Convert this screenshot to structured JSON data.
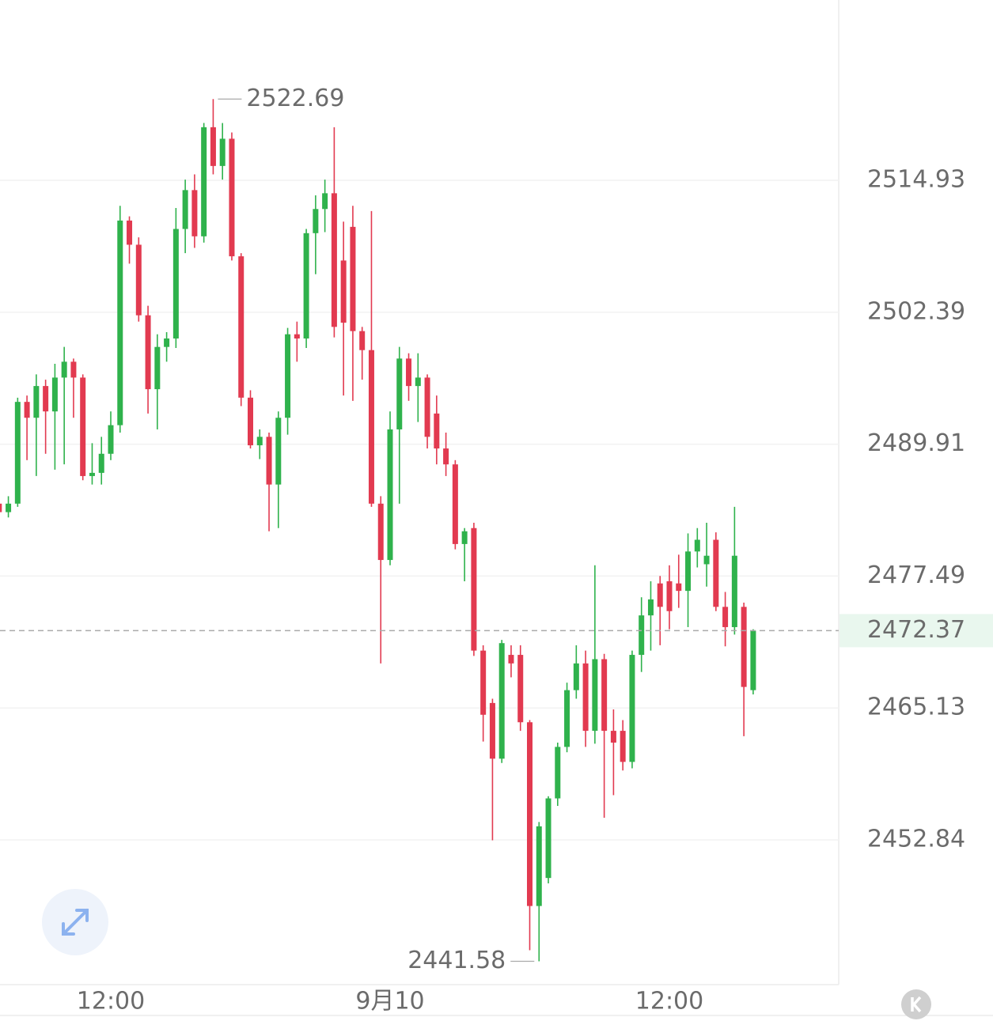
{
  "chart_data": {
    "type": "candlestick",
    "categories": [
      null,
      null,
      null,
      null,
      null,
      null,
      null,
      null,
      null,
      null,
      null,
      null,
      "12:00",
      null,
      null,
      null,
      null,
      null,
      null,
      null,
      null,
      null,
      null,
      null,
      null,
      null,
      null,
      null,
      null,
      null,
      null,
      null,
      null,
      null,
      null,
      null,
      null,
      null,
      null,
      null,
      null,
      null,
      "9月10",
      null,
      null,
      null,
      null,
      null,
      null,
      null,
      null,
      null,
      null,
      null,
      null,
      null,
      null,
      null,
      null,
      null,
      null,
      null,
      null,
      null,
      null,
      null,
      null,
      null,
      null,
      null,
      null,
      null,
      "12:00",
      null,
      null,
      null,
      null,
      null,
      null,
      null,
      null,
      null
    ],
    "open": [
      2484.3,
      2483.5,
      2484.3,
      2493.9,
      2492.4,
      2495.4,
      2493.0,
      2496.2,
      2497.7,
      2496.2,
      2486.9,
      2487.2,
      2489.0,
      2491.7,
      2511.1,
      2508.8,
      2502.1,
      2495.1,
      2499.1,
      2499.9,
      2510.3,
      2514.0,
      2509.6,
      2520.0,
      2516.3,
      2518.9,
      2507.7,
      2494.3,
      2489.8,
      2490.6,
      2486.1,
      2492.4,
      2500.3,
      2499.9,
      2509.9,
      2512.2,
      2513.7,
      2507.3,
      2510.5,
      2500.6,
      2498.8,
      2484.3,
      2479.0,
      2491.3,
      2498.0,
      2495.4,
      2496.2,
      2492.8,
      2489.5,
      2488.0,
      2480.5,
      2482.0,
      2470.5,
      2465.6,
      2460.4,
      2470.1,
      2470.1,
      2463.8,
      2446.7,
      2449.3,
      2456.7,
      2461.5,
      2466.8,
      2469.3,
      2463.0,
      2469.7,
      2463.0,
      2463.0,
      2460.1,
      2470.1,
      2473.8,
      2476.8,
      2477.0,
      2476.8,
      2476.1,
      2479.8,
      2478.6,
      2480.9,
      2474.6,
      2472.7,
      2474.6,
      2466.8
    ],
    "high": [
      2485.0,
      2485.0,
      2494.3,
      2494.5,
      2496.5,
      2496.0,
      2497.5,
      2499.1,
      2498.0,
      2496.5,
      2490.0,
      2490.6,
      2493.0,
      2512.5,
      2511.5,
      2509.5,
      2503.0,
      2500.3,
      2500.5,
      2512.3,
      2515.0,
      2515.5,
      2520.4,
      2522.69,
      2520.4,
      2519.5,
      2508.0,
      2495.0,
      2491.3,
      2491.0,
      2493.0,
      2500.9,
      2501.5,
      2510.3,
      2513.5,
      2515.0,
      2520.0,
      2511.0,
      2512.5,
      2501.0,
      2512.0,
      2485.0,
      2493.0,
      2499.1,
      2498.5,
      2498.5,
      2496.5,
      2494.5,
      2491.0,
      2488.4,
      2482.0,
      2482.5,
      2471.0,
      2466.0,
      2471.5,
      2471.0,
      2471.0,
      2464.0,
      2454.5,
      2456.9,
      2461.9,
      2467.5,
      2471.0,
      2470.5,
      2478.5,
      2470.2,
      2465.0,
      2464.0,
      2470.5,
      2475.5,
      2477.0,
      2477.5,
      2478.5,
      2479.5,
      2481.5,
      2482.0,
      2482.5,
      2481.6,
      2476.0,
      2484.0,
      2475.0,
      2472.5
    ],
    "low": [
      2482.5,
      2483.0,
      2484.0,
      2488.4,
      2486.9,
      2489.0,
      2487.5,
      2488.0,
      2492.4,
      2486.5,
      2486.1,
      2486.1,
      2488.4,
      2491.0,
      2507.0,
      2501.5,
      2492.8,
      2491.3,
      2497.7,
      2499.0,
      2508.0,
      2508.5,
      2509.0,
      2515.5,
      2515.0,
      2507.3,
      2493.5,
      2489.5,
      2488.5,
      2481.7,
      2482.0,
      2490.8,
      2497.7,
      2499.0,
      2506.0,
      2510.0,
      2500.0,
      2494.5,
      2494.0,
      2496.0,
      2484.0,
      2469.3,
      2478.5,
      2484.3,
      2494.0,
      2492.0,
      2489.5,
      2488.0,
      2486.9,
      2480.0,
      2477.0,
      2470.0,
      2462.0,
      2452.8,
      2460.0,
      2468.0,
      2463.0,
      2442.6,
      2441.58,
      2448.8,
      2456.0,
      2461.0,
      2466.0,
      2461.5,
      2461.8,
      2454.9,
      2457.0,
      2459.3,
      2459.5,
      2468.5,
      2470.5,
      2471.0,
      2472.5,
      2474.5,
      2472.7,
      2478.3,
      2476.5,
      2474.2,
      2470.9,
      2472.0,
      2462.5,
      2466.4
    ],
    "close": [
      2483.5,
      2484.3,
      2493.9,
      2492.4,
      2495.4,
      2493.0,
      2496.2,
      2497.7,
      2496.2,
      2486.9,
      2487.2,
      2489.0,
      2491.7,
      2511.1,
      2508.8,
      2502.1,
      2495.1,
      2499.1,
      2499.9,
      2510.3,
      2514.0,
      2509.6,
      2520.0,
      2516.3,
      2518.9,
      2507.7,
      2494.3,
      2489.8,
      2490.6,
      2486.1,
      2492.4,
      2500.3,
      2499.9,
      2509.9,
      2512.2,
      2513.7,
      2501.0,
      2501.4,
      2500.6,
      2498.8,
      2484.3,
      2479.0,
      2491.3,
      2498.0,
      2495.4,
      2496.2,
      2490.6,
      2489.5,
      2488.0,
      2480.5,
      2481.7,
      2470.5,
      2464.5,
      2460.4,
      2471.2,
      2469.3,
      2463.8,
      2446.7,
      2454.1,
      2456.7,
      2461.5,
      2466.8,
      2469.3,
      2463.0,
      2469.7,
      2463.0,
      2461.9,
      2460.1,
      2470.1,
      2473.8,
      2475.3,
      2474.6,
      2474.2,
      2476.1,
      2479.8,
      2480.9,
      2479.4,
      2474.6,
      2472.7,
      2479.4,
      2467.1,
      2472.37
    ],
    "up_color": "#2fb24c",
    "down_color": "#e23a50",
    "ylim": [
      2439.42,
      2532.18
    ],
    "yscale": "log",
    "yticks": [
      2514.93,
      2502.39,
      2489.91,
      2477.49,
      2465.13,
      2452.84
    ],
    "grid": true
  }
}
